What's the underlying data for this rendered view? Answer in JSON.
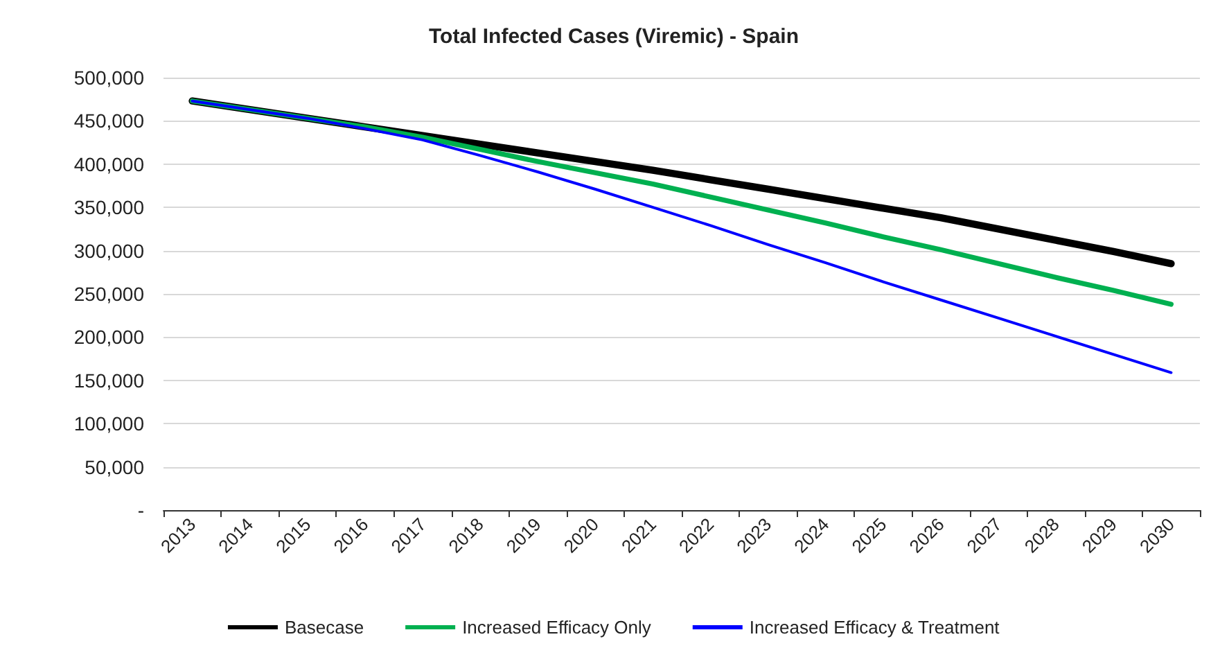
{
  "chart_data": {
    "type": "line",
    "title": "Total Infected Cases (Viremic) - Spain",
    "categories": [
      "2013",
      "2014",
      "2015",
      "2016",
      "2017",
      "2018",
      "2019",
      "2020",
      "2021",
      "2022",
      "2023",
      "2024",
      "2025",
      "2026",
      "2027",
      "2028",
      "2029",
      "2030"
    ],
    "series": [
      {
        "name": "Basecase",
        "color": "#000000",
        "values": [
          473000,
          463000,
          453000,
          443000,
          433000,
          423000,
          413000,
          403000,
          393000,
          382000,
          371000,
          360000,
          349000,
          338000,
          325000,
          312000,
          299000,
          285000
        ]
      },
      {
        "name": "Increased Efficacy Only",
        "color": "#00b050",
        "values": [
          473000,
          463000,
          453000,
          443000,
          431000,
          417000,
          403000,
          390000,
          377000,
          362000,
          347000,
          332000,
          316000,
          301000,
          285000,
          269000,
          254000,
          238000
        ]
      },
      {
        "name": "Increased Efficacy & Treatment",
        "color": "#0000ff",
        "values": [
          473000,
          463000,
          453000,
          441000,
          428000,
          410000,
          391000,
          371000,
          350000,
          329000,
          307000,
          286000,
          264000,
          243000,
          222000,
          201000,
          180000,
          159000
        ]
      }
    ],
    "ylim": [
      0,
      500000
    ],
    "yticks": [
      {
        "value": 0,
        "label": "-"
      },
      {
        "value": 50000,
        "label": "50,000"
      },
      {
        "value": 100000,
        "label": "100,000"
      },
      {
        "value": 150000,
        "label": "150,000"
      },
      {
        "value": 200000,
        "label": "200,000"
      },
      {
        "value": 250000,
        "label": "250,000"
      },
      {
        "value": 300000,
        "label": "300,000"
      },
      {
        "value": 350000,
        "label": "350,000"
      },
      {
        "value": 400000,
        "label": "400,000"
      },
      {
        "value": 450000,
        "label": "450,000"
      },
      {
        "value": 500000,
        "label": "500,000"
      }
    ],
    "grid": "y",
    "legend": "bottom",
    "marker": "none",
    "line_style": "solid"
  }
}
